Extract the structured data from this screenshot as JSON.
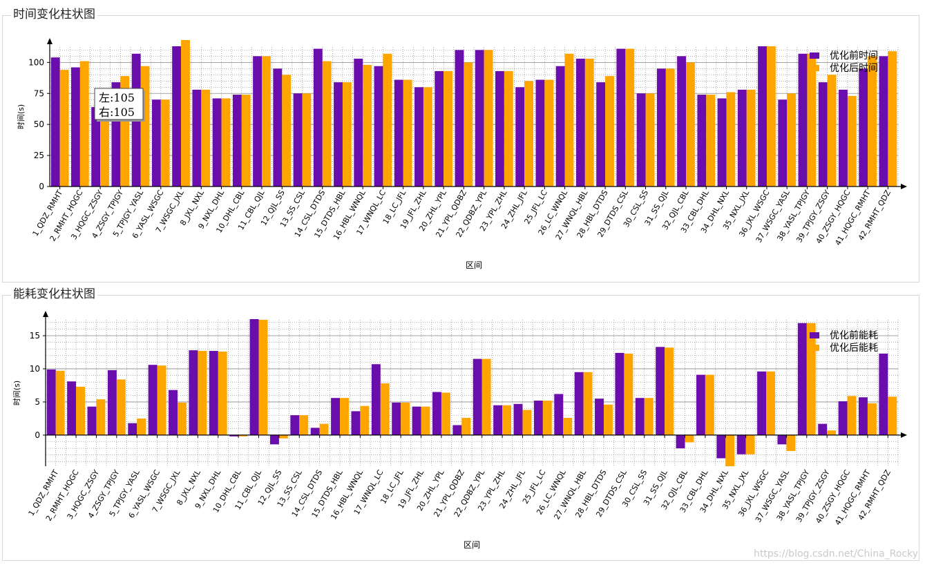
{
  "colors": {
    "before": "#6a0dad",
    "after": "#ffa500"
  },
  "watermark": "https://blog.csdn.net/China_Rocky",
  "chart_data": [
    {
      "type": "bar",
      "title": "时间变化柱状图",
      "xlabel": "区间",
      "ylabel": "时间(s)",
      "ylim": [
        0,
        118
      ],
      "yticks": [
        0,
        25,
        50,
        75,
        100
      ],
      "grid": true,
      "legend_position": "top-right",
      "tooltip": {
        "line1": "左:105",
        "line2": "右:105"
      },
      "categories": [
        "1_QDZ_RMHT",
        "2_RMHT_HQGC",
        "3_HQGC_ZSGY",
        "4_ZSGY_TPJGY",
        "5_TPJGY_YASL",
        "6_YASL_WSGC",
        "7_WSGC_JXL",
        "8_JXL_NXL",
        "9_NXL_DHL",
        "10_DHL_CBL",
        "11_CBL_QJL",
        "12_QJL_SS",
        "13_SS_CSL",
        "14_CSL_DTDS",
        "15_DTDS_HBL",
        "16_HBL_WNQL",
        "17_WNQL_LC",
        "18_LC_JFL",
        "19_JFL_ZHL",
        "20_ZHL_YPL",
        "21_YPL_QDBZ",
        "22_QDBZ_YPL",
        "23_YPL_ZHL",
        "24_ZHL_JFL",
        "25_JFL_LC",
        "26_LC_WNQL",
        "27_WNQL_HBL",
        "28_HBL_DTDS",
        "29_DTDS_CSL",
        "30_CSL_SS",
        "31_SS_QJL",
        "32_QJL_CBL",
        "33_CBL_DHL",
        "34_DHL_NXL",
        "35_NXL_JXL",
        "36_JXL_WSGC",
        "37_WSGC_YASL",
        "38_YASL_TPJGY",
        "39_TPJGY_ZSGY",
        "40_ZSGY_HQGC",
        "41_HQGC_RMHT",
        "42_RMHT_QDZ"
      ],
      "series": [
        {
          "name": "优化前时间",
          "values": [
            104,
            96,
            64,
            84,
            107,
            70,
            113,
            78,
            71,
            74,
            105,
            95,
            75,
            111,
            84,
            103,
            97,
            86,
            80,
            93,
            110,
            110,
            93,
            80,
            86,
            97,
            103,
            84,
            111,
            75,
            95,
            105,
            74,
            71,
            78,
            113,
            70,
            107,
            84,
            78,
            95,
            105
          ]
        },
        {
          "name": "优化后时间",
          "values": [
            94,
            101,
            64,
            89,
            97,
            70,
            118,
            78,
            71,
            74,
            105,
            90,
            75,
            101,
            84,
            98,
            107,
            86,
            80,
            93,
            100,
            110,
            93,
            85,
            86,
            107,
            103,
            89,
            111,
            75,
            95,
            100,
            74,
            76,
            78,
            113,
            75,
            107,
            90,
            73,
            105,
            109
          ]
        }
      ]
    },
    {
      "type": "bar",
      "title": "能耗变化柱状图",
      "xlabel": "区间",
      "ylabel": "时间(s)",
      "ylim": [
        -4.7,
        17.5
      ],
      "yticks": [
        0,
        5,
        10,
        15
      ],
      "grid": true,
      "legend_position": "top-right",
      "categories": [
        "1_QDZ_RMHT",
        "2_RMHT_HQGC",
        "3_HQGC_ZSGY",
        "4_ZSGY_TPJGY",
        "5_TPJGY_YASL",
        "6_YASL_WSGC",
        "7_WSGC_JXL",
        "8_JXL_NXL",
        "9_NXL_DHL",
        "10_DHL_CBL",
        "11_CBL_QJL",
        "12_QJL_SS",
        "13_SS_CSL",
        "14_CSL_DTDS",
        "15_DTDS_HBL",
        "16_HBL_WNQL",
        "17_WNQL_LC",
        "18_LC_JFL",
        "19_JFL_ZHL",
        "20_ZHL_YPL",
        "21_YPL_QDBZ",
        "22_QDBZ_YPL",
        "23_YPL_ZHL",
        "24_ZHL_JFL",
        "25_JFL_LC",
        "26_LC_WNQL",
        "27_WNQL_HBL",
        "28_HBL_DTDS",
        "29_DTDS_CSL",
        "30_CSL_SS",
        "31_SS_QJL",
        "32_QJL_CBL",
        "33_CBL_DHL",
        "34_DHL_NXL",
        "35_NXL_JXL",
        "36_JXL_WSGC",
        "37_WSGC_YASL",
        "38_YASL_TPJGY",
        "39_TPJGY_ZSGY",
        "40_ZSGY_HQGC",
        "41_HQGC_RMHT",
        "42_RMHT_QDZ"
      ],
      "series": [
        {
          "name": "优化前能耗",
          "values": [
            9.9,
            8.1,
            4.3,
            9.8,
            1.8,
            10.6,
            6.8,
            12.8,
            12.7,
            -0.2,
            17.5,
            -1.4,
            3.0,
            1.1,
            5.6,
            3.6,
            10.7,
            4.9,
            4.3,
            6.5,
            1.5,
            11.5,
            4.5,
            4.7,
            5.2,
            6.2,
            9.5,
            5.5,
            12.4,
            5.6,
            13.3,
            -2.0,
            9.1,
            -3.5,
            -2.9,
            9.6,
            -1.4,
            16.9,
            1.7,
            5.1,
            5.7,
            12.3
          ]
        },
        {
          "name": "优化后能耗",
          "values": [
            9.7,
            7.3,
            5.4,
            8.4,
            2.5,
            10.5,
            4.9,
            12.7,
            12.6,
            -0.2,
            17.4,
            -0.5,
            3.0,
            1.7,
            5.6,
            4.4,
            7.8,
            4.9,
            4.3,
            6.4,
            2.6,
            11.5,
            4.5,
            3.8,
            5.2,
            2.6,
            9.5,
            4.6,
            12.3,
            5.6,
            13.2,
            -1.1,
            9.1,
            -4.7,
            -2.9,
            9.6,
            -2.4,
            16.9,
            0.7,
            5.9,
            4.8,
            5.8
          ]
        }
      ]
    }
  ]
}
